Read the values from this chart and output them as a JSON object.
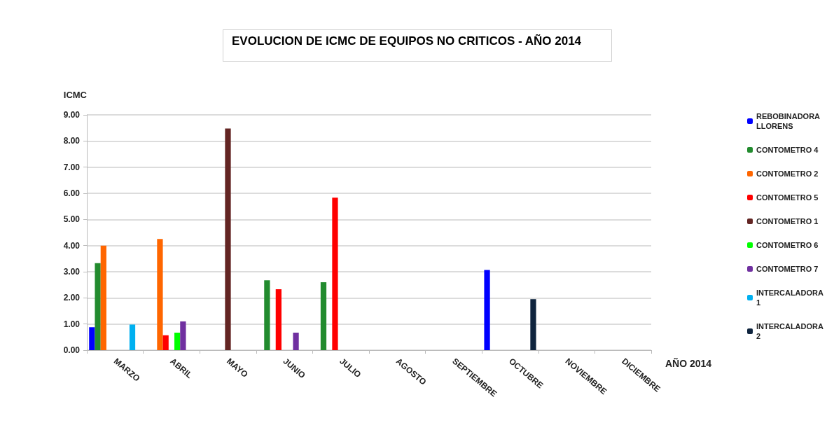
{
  "chart_data": {
    "type": "bar",
    "title": "EVOLUCION DE ICMC DE EQUIPOS NO CRITICOS - AÑO 2014",
    "xlabel": "AÑO 2014",
    "ylabel": "ICMC",
    "categories": [
      "MARZO",
      "ABRIL",
      "MAYO",
      "JUNIO",
      "JULIO",
      "AGOSTO",
      "SEPTIEMBRE",
      "OCTUBRE",
      "NOVIEMBRE",
      "DICIEMBRE"
    ],
    "series": [
      {
        "name": "REBOBINADORA LLORENS",
        "color": "#0000ff",
        "values": [
          0.88,
          null,
          null,
          null,
          null,
          null,
          null,
          3.07,
          null,
          null
        ]
      },
      {
        "name": "CONTOMETRO 4",
        "color": "#228b2e",
        "values": [
          3.33,
          null,
          null,
          2.67,
          2.6,
          null,
          null,
          null,
          null,
          null
        ]
      },
      {
        "name": "CONTOMETRO 2",
        "color": "#ff6600",
        "values": [
          4.0,
          4.25,
          null,
          null,
          null,
          null,
          null,
          null,
          null,
          null
        ]
      },
      {
        "name": "CONTOMETRO 5",
        "color": "#ff0000",
        "values": [
          null,
          0.57,
          null,
          2.33,
          5.83,
          null,
          null,
          null,
          null,
          null
        ]
      },
      {
        "name": "CONTOMETRO 1",
        "color": "#632523",
        "values": [
          null,
          null,
          8.48,
          null,
          null,
          null,
          null,
          null,
          null,
          null
        ]
      },
      {
        "name": "CONTOMETRO 6",
        "color": "#00ff00",
        "values": [
          null,
          0.67,
          null,
          null,
          null,
          null,
          null,
          null,
          null,
          null
        ]
      },
      {
        "name": "CONTOMETRO 7",
        "color": "#7030a0",
        "values": [
          null,
          1.1,
          null,
          0.67,
          null,
          null,
          null,
          null,
          null,
          null
        ]
      },
      {
        "name": "INTERCALADORA 1",
        "color": "#00b0f0",
        "values": [
          0.98,
          null,
          null,
          null,
          null,
          null,
          null,
          null,
          null,
          null
        ]
      },
      {
        "name": "INTERCALADORA 2",
        "color": "#0f243e",
        "values": [
          null,
          null,
          null,
          null,
          null,
          null,
          null,
          1.95,
          null,
          null
        ]
      }
    ],
    "ylim": [
      0,
      9
    ],
    "yticks": [
      {
        "value": 0,
        "label": "0.00"
      },
      {
        "value": 1,
        "label": "1.00"
      },
      {
        "value": 2,
        "label": "2.00"
      },
      {
        "value": 3,
        "label": "3.00"
      },
      {
        "value": 4,
        "label": "4.00"
      },
      {
        "value": 5,
        "label": "5.00"
      },
      {
        "value": 6,
        "label": "6.00"
      },
      {
        "value": 7,
        "label": "7.00"
      },
      {
        "value": 8,
        "label": "8.00"
      },
      {
        "value": 9,
        "label": "9.00"
      }
    ],
    "grid": "y",
    "legend": "right"
  }
}
